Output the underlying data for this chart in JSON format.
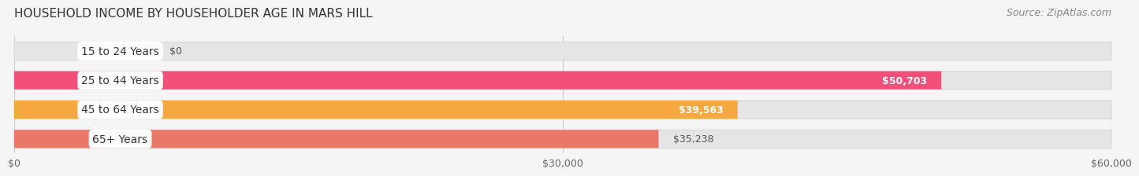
{
  "title": "HOUSEHOLD INCOME BY HOUSEHOLDER AGE IN MARS HILL",
  "source": "Source: ZipAtlas.com",
  "categories": [
    "15 to 24 Years",
    "25 to 44 Years",
    "45 to 64 Years",
    "65+ Years"
  ],
  "values": [
    0,
    50703,
    39563,
    35238
  ],
  "bar_colors": [
    "#a0a0d8",
    "#f0507a",
    "#f5a840",
    "#e87868"
  ],
  "bar_bg_color": "#e5e5e5",
  "value_labels": [
    "$0",
    "$50,703",
    "$39,563",
    "$35,238"
  ],
  "value_label_inside": [
    false,
    true,
    true,
    false
  ],
  "xlim": [
    0,
    60000
  ],
  "xticks": [
    0,
    30000,
    60000
  ],
  "xticklabels": [
    "$0",
    "$30,000",
    "$60,000"
  ],
  "title_fontsize": 11,
  "source_fontsize": 9,
  "bar_label_fontsize": 10,
  "value_fontsize": 9,
  "xtick_fontsize": 9,
  "background_color": "#f5f5f5",
  "bar_bg_outer_color": "#d8d8d8"
}
